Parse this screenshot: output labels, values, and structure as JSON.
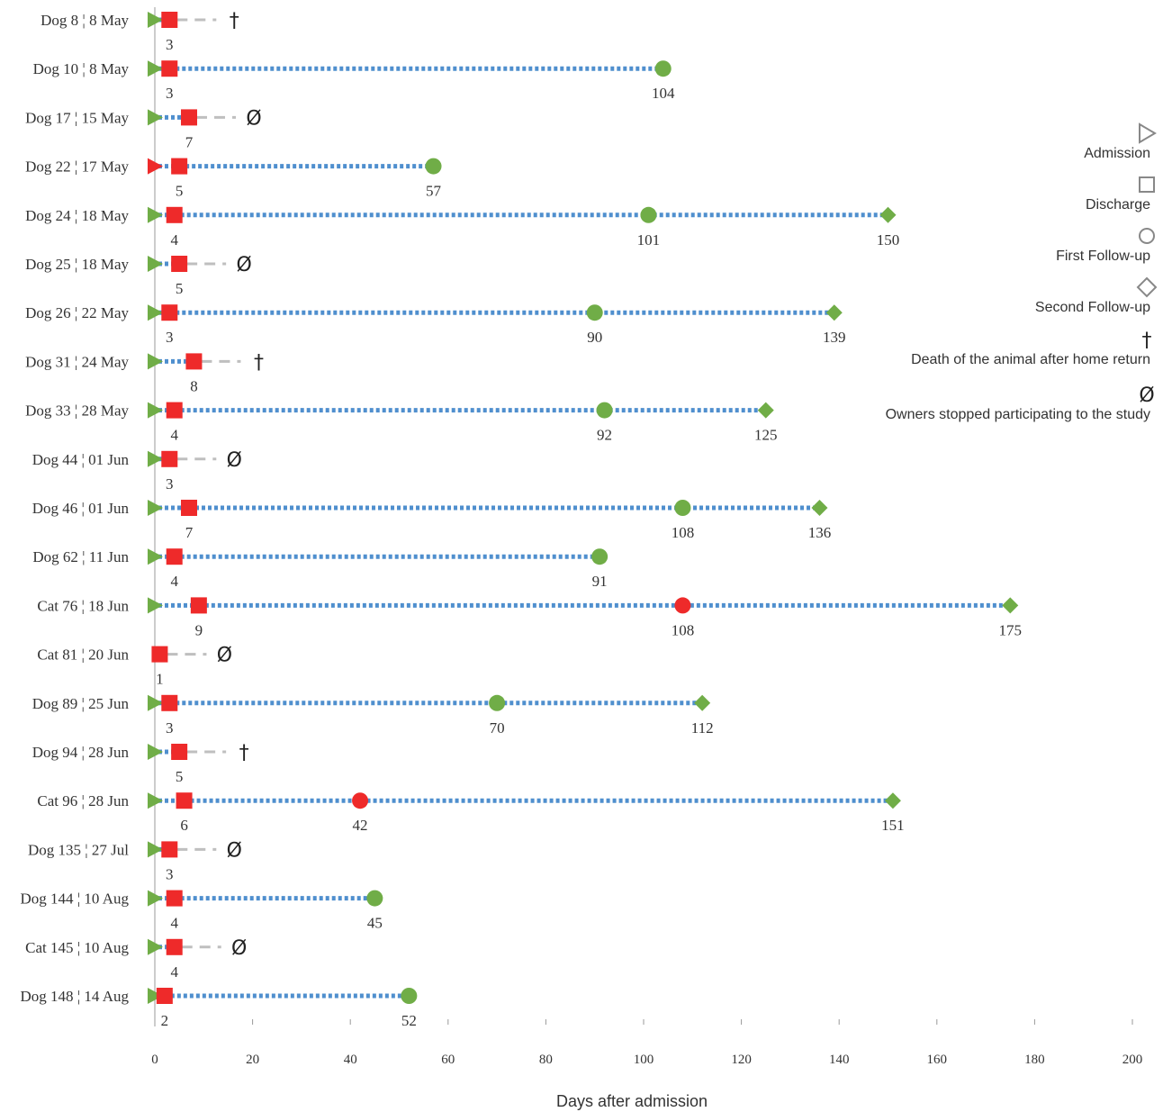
{
  "chart_data": {
    "type": "scatter",
    "xlabel": "Days after admission",
    "xlim": [
      0,
      200
    ],
    "x_ticks": [
      0,
      20,
      40,
      60,
      80,
      100,
      120,
      140,
      160,
      180,
      200
    ],
    "legend": {
      "placement": "right",
      "items": [
        {
          "name": "Admission",
          "symbol": "triangle"
        },
        {
          "name": "Discharge",
          "symbol": "square"
        },
        {
          "name": "First Follow-up",
          "symbol": "circle"
        },
        {
          "name": "Second Follow-up",
          "symbol": "diamond"
        },
        {
          "name": "Death of the animal after home return",
          "symbol": "dagger",
          "glyph": "†"
        },
        {
          "name": "Owners stopped participating to the study",
          "symbol": "stop",
          "glyph": "Ø"
        }
      ]
    },
    "colors": {
      "green": "#70ad47",
      "red": "#ee2a2a",
      "blue": "#4f8fce",
      "grey": "#bfbfbf",
      "axis": "#999999"
    },
    "rows": [
      {
        "label": "Dog 8 ¦  8 May",
        "admission": 0,
        "admission_color": "green",
        "discharge": 3,
        "first_followup": null,
        "second_followup": null,
        "end": "death"
      },
      {
        "label": "Dog 10 ¦  8 May",
        "admission": 0,
        "admission_color": "green",
        "discharge": 3,
        "first_followup": 104,
        "first_followup_color": "green",
        "second_followup": null,
        "end": null
      },
      {
        "label": "Dog 17 ¦  15 May",
        "admission": 0,
        "admission_color": "green",
        "discharge": 7,
        "first_followup": null,
        "second_followup": null,
        "end": "stopped"
      },
      {
        "label": "Dog 22 ¦  17 May",
        "admission": 0,
        "admission_color": "red",
        "discharge": 5,
        "first_followup": 57,
        "first_followup_color": "green",
        "second_followup": null,
        "end": null
      },
      {
        "label": "Dog 24 ¦  18 May",
        "admission": 0,
        "admission_color": "green",
        "discharge": 4,
        "first_followup": 101,
        "first_followup_color": "green",
        "second_followup": 150,
        "end": null
      },
      {
        "label": "Dog 25 ¦  18 May",
        "admission": 0,
        "admission_color": "green",
        "discharge": 5,
        "first_followup": null,
        "second_followup": null,
        "end": "stopped"
      },
      {
        "label": "Dog 26 ¦  22 May",
        "admission": 0,
        "admission_color": "green",
        "discharge": 3,
        "first_followup": 90,
        "first_followup_color": "green",
        "second_followup": 139,
        "end": null
      },
      {
        "label": "Dog 31 ¦  24 May",
        "admission": 0,
        "admission_color": "green",
        "discharge": 8,
        "first_followup": null,
        "second_followup": null,
        "end": "death"
      },
      {
        "label": "Dog 33 ¦  28 May",
        "admission": 0,
        "admission_color": "green",
        "discharge": 4,
        "first_followup": 92,
        "first_followup_color": "green",
        "second_followup": 125,
        "end": null
      },
      {
        "label": "Dog 44 ¦  01 Jun",
        "admission": 0,
        "admission_color": "green",
        "discharge": 3,
        "first_followup": null,
        "second_followup": null,
        "end": "stopped"
      },
      {
        "label": "Dog 46 ¦  01 Jun",
        "admission": 0,
        "admission_color": "green",
        "discharge": 7,
        "first_followup": 108,
        "first_followup_color": "green",
        "second_followup": 136,
        "end": null
      },
      {
        "label": "Dog 62 ¦ 11 Jun",
        "admission": 0,
        "admission_color": "green",
        "discharge": 4,
        "first_followup": 91,
        "first_followup_color": "green",
        "second_followup": null,
        "end": null
      },
      {
        "label": "Cat 76 ¦  18 Jun",
        "admission": 0,
        "admission_color": "green",
        "discharge": 9,
        "first_followup": 108,
        "first_followup_color": "red",
        "second_followup": 175,
        "end": null
      },
      {
        "label": "Cat 81 ¦  20 Jun",
        "admission": null,
        "admission_color": "green",
        "discharge": 1,
        "first_followup": null,
        "second_followup": null,
        "end": "stopped"
      },
      {
        "label": "Dog 89 ¦  25 Jun",
        "admission": 0,
        "admission_color": "green",
        "discharge": 3,
        "first_followup": 70,
        "first_followup_color": "green",
        "second_followup": 112,
        "end": null
      },
      {
        "label": "Dog 94 ¦  28 Jun",
        "admission": 0,
        "admission_color": "green",
        "discharge": 5,
        "first_followup": null,
        "second_followup": null,
        "end": "death"
      },
      {
        "label": "Cat 96 ¦  28 Jun",
        "admission": 0,
        "admission_color": "green",
        "discharge": 6,
        "first_followup": 42,
        "first_followup_color": "red",
        "second_followup": 151,
        "end": null
      },
      {
        "label": "Dog 135 ¦  27 Jul",
        "admission": 0,
        "admission_color": "green",
        "discharge": 3,
        "first_followup": null,
        "second_followup": null,
        "end": "stopped"
      },
      {
        "label": "Dog 144 ¦  10 Aug",
        "admission": 0,
        "admission_color": "green",
        "discharge": 4,
        "first_followup": 45,
        "first_followup_color": "green",
        "second_followup": null,
        "end": null
      },
      {
        "label": "Cat 145 ¦  10 Aug",
        "admission": 0,
        "admission_color": "green",
        "discharge": 4,
        "first_followup": null,
        "second_followup": null,
        "end": "stopped"
      },
      {
        "label": "Dog 148 ¦  14 Aug",
        "admission": 0,
        "admission_color": "green",
        "discharge": 2,
        "first_followup": 52,
        "first_followup_color": "green",
        "second_followup": null,
        "end": null
      }
    ]
  }
}
